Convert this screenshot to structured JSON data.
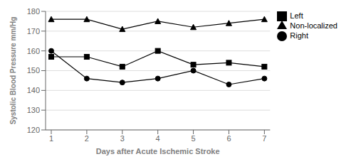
{
  "chart_data": {
    "type": "line",
    "x": [
      1,
      2,
      3,
      4,
      5,
      6,
      7
    ],
    "series": [
      {
        "name": "Right",
        "color": "#000000",
        "marker": "circle",
        "values": [
          160,
          146,
          144,
          146,
          150,
          143,
          146
        ]
      },
      {
        "name": "Left",
        "color": "#000000",
        "marker": "square",
        "values": [
          157,
          157,
          152,
          160,
          153,
          154,
          152
        ]
      },
      {
        "name": "Non-localized",
        "color": "#000000",
        "marker": "triangle",
        "values": [
          176,
          176,
          171,
          175,
          172,
          174,
          176
        ]
      }
    ],
    "xlabel": "Days after Acute Ischemic Stroke",
    "ylabel": "Systolic Blood Pressure mm/Hg",
    "xlim": [
      1,
      7
    ],
    "xticks": [
      1,
      2,
      3,
      4,
      5,
      6,
      7
    ],
    "ylim": [
      120,
      180
    ],
    "yticks": [
      120,
      130,
      140,
      150,
      160,
      170,
      180
    ],
    "grid": true,
    "legend": "upper right"
  }
}
